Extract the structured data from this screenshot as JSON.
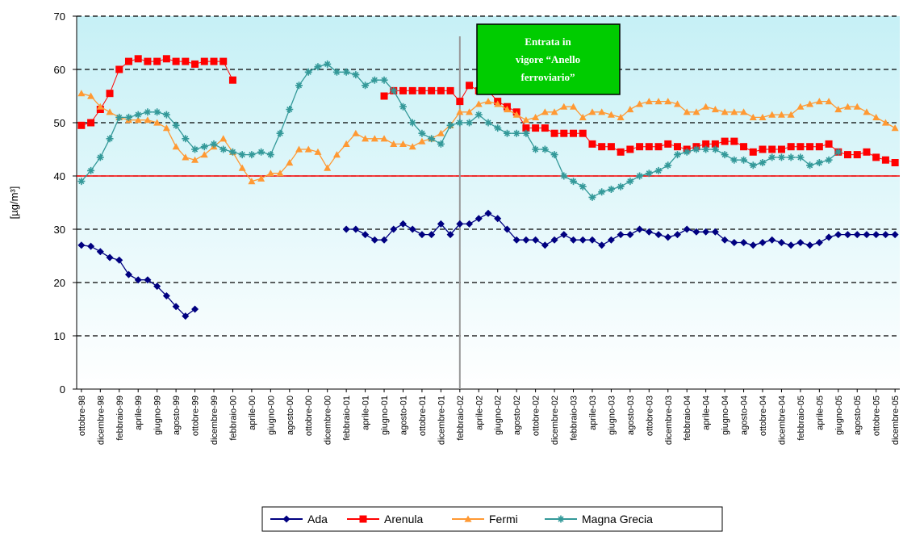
{
  "chart_data": {
    "type": "line",
    "y_label": "[µg/m³]",
    "categories": [
      "ottobre-98",
      null,
      "dicembre-98",
      null,
      "febbraio-99",
      null,
      "aprile-99",
      null,
      "giugno-99",
      null,
      "agosto-99",
      null,
      "ottobre-99",
      null,
      "dicembre-99",
      null,
      "febbraio-00",
      null,
      "aprile-00",
      null,
      "giugno-00",
      null,
      "agosto-00",
      null,
      "ottobre-00",
      null,
      "dicembre-00",
      null,
      "febbraio-01",
      null,
      "aprile-01",
      null,
      "giugno-01",
      null,
      "agosto-01",
      null,
      "ottobre-01",
      null,
      "dicembre-01",
      null,
      "febbraio-02",
      null,
      "aprile-02",
      null,
      "giugno-02",
      null,
      "agosto-02",
      null,
      "ottobre-02",
      null,
      "dicembre-02",
      null,
      "febbraio-03",
      null,
      "aprile-03",
      null,
      "giugno-03",
      null,
      "agosto-03",
      null,
      "ottobre-03",
      null,
      "dicembre-03",
      null,
      "febbraio-04",
      null,
      "aprile-04",
      null,
      "giugno-04",
      null,
      "agosto-04",
      null,
      "ottobre-04",
      null,
      "dicembre-04",
      null,
      "febbraio-05",
      null,
      "aprile-05",
      null,
      "giugno-05",
      null,
      "agosto-05",
      null,
      "ottobre-05",
      null,
      "dicembre-05"
    ],
    "series": [
      {
        "name": "Ada",
        "color": "#000080",
        "marker": "diamond",
        "values": [
          27,
          26.8,
          25.8,
          24.7,
          24.2,
          21.5,
          20.5,
          20.5,
          19.3,
          17.5,
          15.5,
          13.7,
          15,
          null,
          null,
          null,
          null,
          null,
          null,
          null,
          null,
          null,
          null,
          null,
          null,
          null,
          null,
          null,
          30,
          30,
          29,
          28,
          28,
          30,
          31,
          30,
          29,
          29,
          31,
          29,
          31,
          31,
          32,
          33,
          32,
          30,
          28,
          28,
          28,
          27,
          28,
          29,
          28,
          28,
          28,
          27,
          28,
          29,
          29,
          30,
          29.5,
          29,
          28.5,
          29,
          30,
          29.5,
          29.5,
          29.5,
          28,
          27.5,
          27.5,
          27,
          27.5,
          28,
          27.5,
          27,
          27.5,
          27,
          27.5,
          28.5,
          29,
          29,
          29,
          29,
          29,
          29,
          29
        ]
      },
      {
        "name": "Arenula",
        "color": "#ff0000",
        "marker": "square",
        "values": [
          49.5,
          50,
          52.5,
          55.5,
          60,
          61.5,
          62,
          61.5,
          61.5,
          62,
          61.5,
          61.5,
          61,
          61.5,
          61.5,
          61.5,
          58,
          null,
          null,
          null,
          null,
          null,
          null,
          null,
          null,
          null,
          null,
          null,
          null,
          null,
          null,
          null,
          55,
          56,
          56,
          56,
          56,
          56,
          56,
          56,
          54,
          57,
          56,
          56,
          54,
          53,
          52,
          49,
          49,
          49,
          48,
          48,
          48,
          48,
          46,
          45.5,
          45.5,
          44.5,
          45,
          45.5,
          45.5,
          45.5,
          46,
          45.5,
          45,
          45.5,
          46,
          46,
          46.5,
          46.5,
          45.5,
          44.5,
          45,
          45,
          45,
          45.5,
          45.5,
          45.5,
          45.5,
          46,
          44.5,
          44,
          44,
          44.5,
          43.5,
          43,
          42.5
        ]
      },
      {
        "name": "Fermi",
        "color": "#ff9933",
        "marker": "triangle",
        "values": [
          55.5,
          55,
          53,
          52,
          51,
          50.5,
          50.5,
          50.5,
          50,
          49,
          45.5,
          43.5,
          43,
          44,
          45.5,
          47,
          44.5,
          41.5,
          39,
          39.5,
          40.5,
          40.5,
          42.5,
          45,
          45,
          44.5,
          41.5,
          44,
          46,
          48,
          47,
          47,
          47,
          46,
          46,
          45.5,
          46.5,
          47,
          48,
          49.5,
          52,
          52,
          53.5,
          54,
          53.5,
          52.5,
          51.5,
          50.5,
          51,
          52,
          52,
          53,
          53,
          51,
          52,
          52,
          51.5,
          51,
          52.5,
          53.5,
          54,
          54,
          54,
          53.5,
          52,
          52,
          53,
          52.5,
          52,
          52,
          52,
          51,
          51,
          51.5,
          51.5,
          51.5,
          53,
          53.5,
          54,
          54,
          52.5,
          53,
          53,
          52,
          51,
          50,
          49
        ]
      },
      {
        "name": "Magna Grecia",
        "color": "#339999",
        "marker": "star",
        "values": [
          39,
          41,
          43.5,
          47,
          51,
          51,
          51.5,
          52,
          52,
          51.5,
          49.5,
          47,
          45,
          45.5,
          46,
          45,
          44.5,
          44,
          44,
          44.5,
          44,
          48,
          52.5,
          57,
          59.5,
          60.5,
          61,
          59.5,
          59.5,
          59,
          57,
          58,
          58,
          56,
          53,
          50,
          48,
          47,
          46,
          49.5,
          50,
          50,
          51.5,
          50,
          49,
          48,
          48,
          48,
          45,
          45,
          44,
          40,
          39,
          38,
          36,
          37,
          37.5,
          38,
          39,
          40,
          40.5,
          41,
          42,
          44,
          44.5,
          45,
          45,
          45,
          44,
          43,
          43,
          42,
          42.5,
          43.5,
          43.5,
          43.5,
          43.5,
          42,
          42.5,
          43,
          44.5,
          null,
          null,
          null,
          null,
          null,
          null
        ]
      }
    ],
    "ylim": [
      0,
      70
    ],
    "yticks": [
      0,
      10,
      20,
      30,
      40,
      50,
      60,
      70
    ],
    "grid": true,
    "reference_line": {
      "value": 40,
      "color": "#ff0000"
    },
    "annotation": {
      "x": "febbraio-02",
      "lines": [
        "Entrata in",
        "vigore “Anello",
        "ferroviario”"
      ],
      "color": "#00cc00"
    },
    "legend": "bottom"
  }
}
